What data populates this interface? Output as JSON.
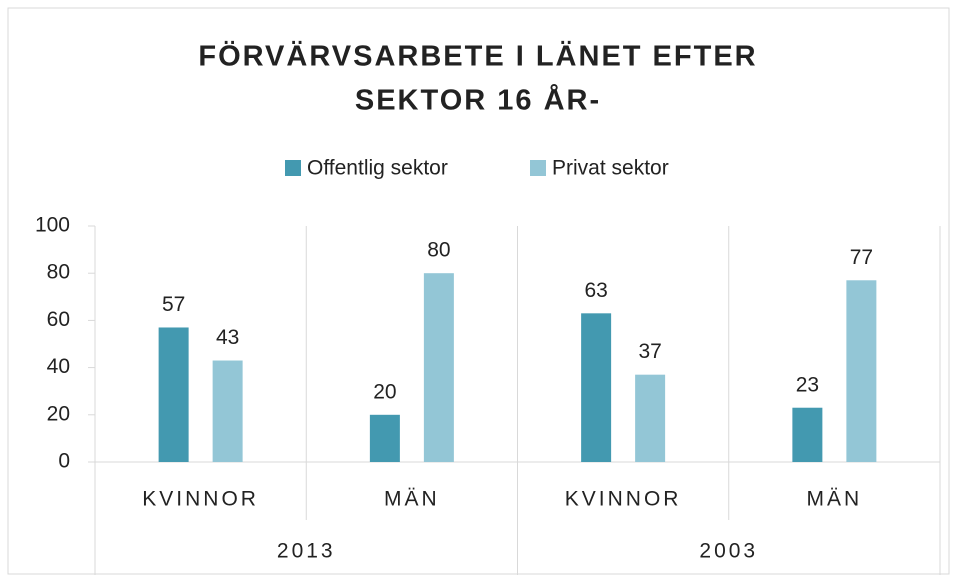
{
  "chart_data": {
    "type": "bar",
    "title": [
      "FÖRVÄRVSARBETE I LÄNET  EFTER",
      "SEKTOR 16 ÅR-"
    ],
    "categories": [
      "KVINNOR",
      "MÄN",
      "KVINNOR",
      "MÄN"
    ],
    "groups": [
      "2013",
      "2003"
    ],
    "series": [
      {
        "name": "Offentlig sektor",
        "color": "#4399b0",
        "values": [
          57,
          20,
          63,
          23
        ]
      },
      {
        "name": "Privat sektor",
        "color": "#93c6d6",
        "values": [
          43,
          80,
          37,
          77
        ]
      }
    ],
    "ylim": [
      0,
      100
    ],
    "yticks": [
      0,
      20,
      40,
      60,
      80,
      100
    ],
    "grid": false,
    "legend": "top"
  }
}
